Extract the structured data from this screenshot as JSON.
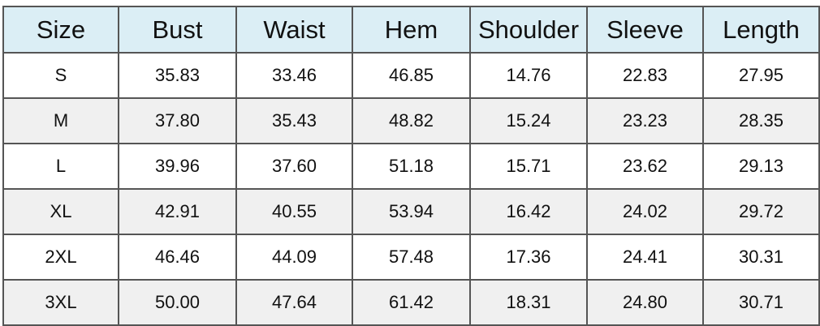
{
  "table": {
    "header": [
      "Size",
      "Bust",
      "Waist",
      "Hem",
      "Shoulder",
      "Sleeve",
      "Length"
    ],
    "rows": [
      [
        "S",
        "35.83",
        "33.46",
        "46.85",
        "14.76",
        "22.83",
        "27.95"
      ],
      [
        "M",
        "37.80",
        "35.43",
        "48.82",
        "15.24",
        "23.23",
        "28.35"
      ],
      [
        "L",
        "39.96",
        "37.60",
        "51.18",
        "15.71",
        "23.62",
        "29.13"
      ],
      [
        "XL",
        "42.91",
        "40.55",
        "53.94",
        "16.42",
        "24.02",
        "29.72"
      ],
      [
        "2XL",
        "46.46",
        "44.09",
        "57.48",
        "17.36",
        "24.41",
        "30.31"
      ],
      [
        "3XL",
        "50.00",
        "47.64",
        "61.42",
        "18.31",
        "24.80",
        "30.71"
      ]
    ]
  }
}
